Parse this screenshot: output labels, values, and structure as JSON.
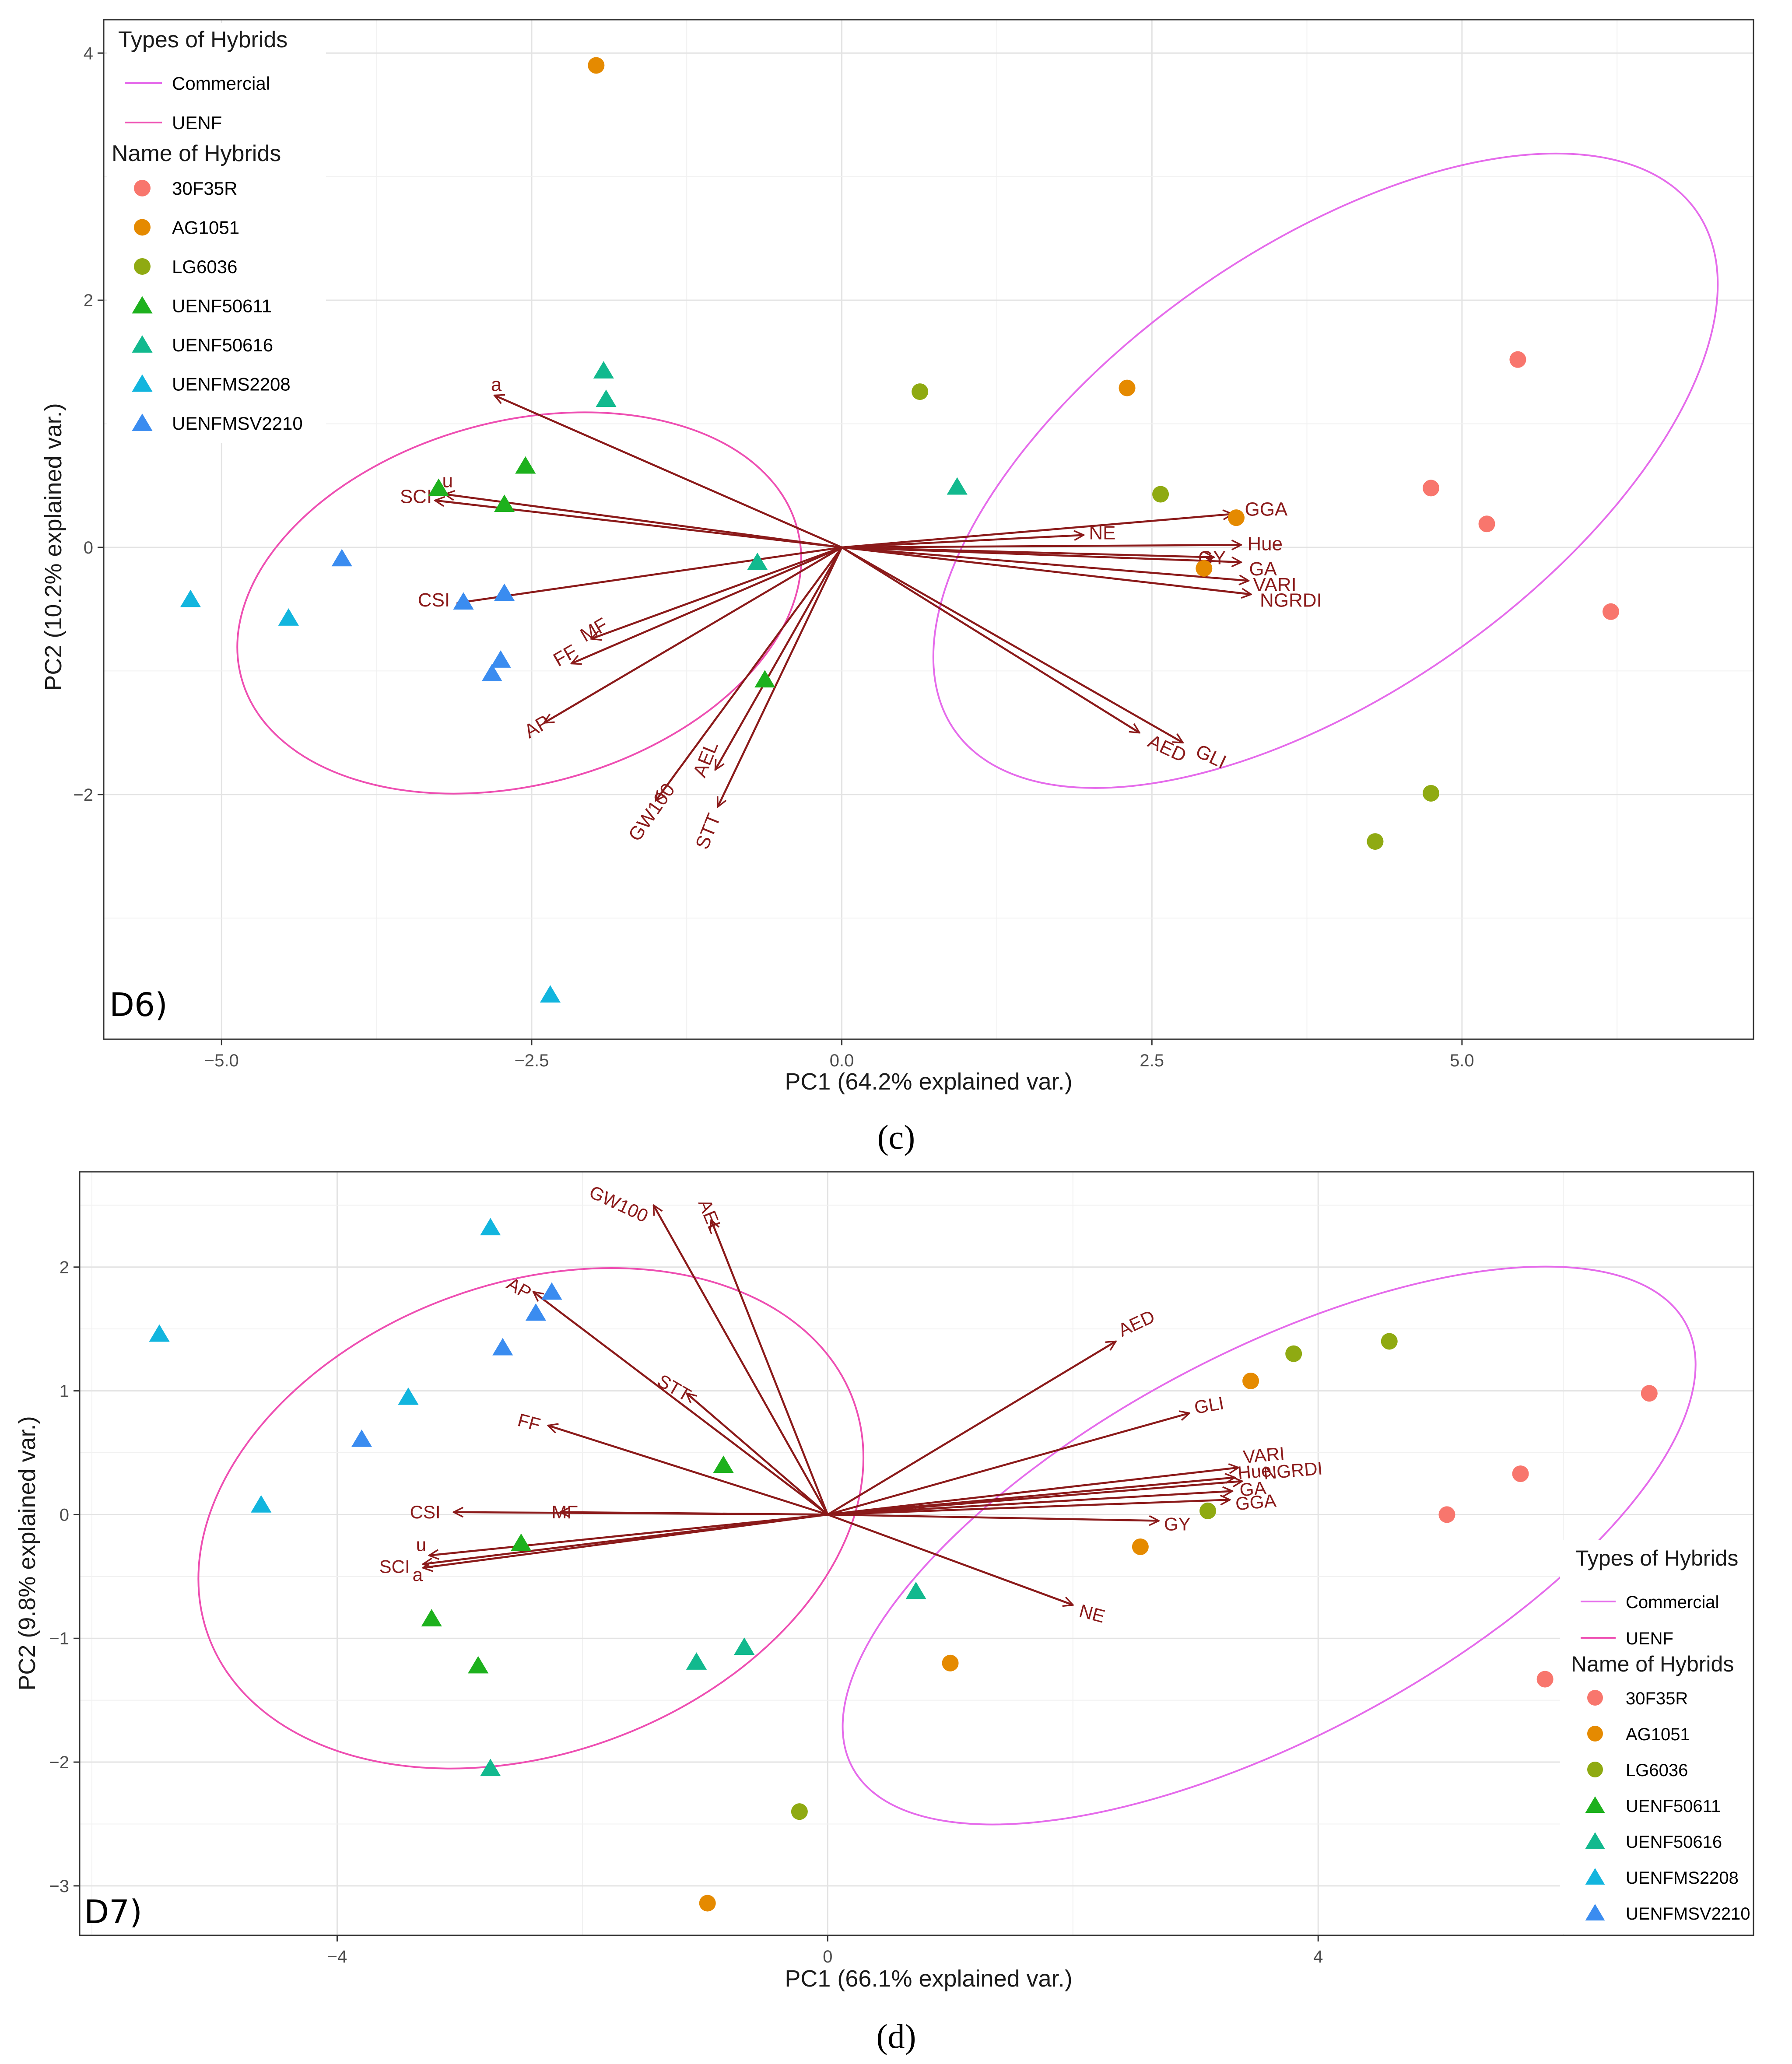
{
  "palette": {
    "30F35R": "#F8766D",
    "AG1051": "#E58A00",
    "LG6036": "#8FAA12",
    "UENF50611": "#1DB11D",
    "UENF50616": "#12B98E",
    "UENFMS2208": "#12B5DE",
    "UENFMSV2210": "#3A8CF0",
    "Commercial": "#E56BEB",
    "UENF": "#EE4FB2",
    "arrow": "#8B1A1A"
  },
  "chart_data": [
    {
      "id": "c",
      "type": "scatter",
      "subtype": "pca-biplot",
      "caption": "(c)",
      "tag": "D6)",
      "xlabel": "PC1 (64.2% explained var.)",
      "ylabel": "PC2 (10.2% explained var.)",
      "xlim": [
        -5.95,
        7.35
      ],
      "ylim": [
        -3.98,
        4.27
      ],
      "xticks": [
        -5.0,
        -2.5,
        0.0,
        2.5,
        5.0
      ],
      "xtick_labels": [
        "−5.0",
        "−2.5",
        "0.0",
        "2.5",
        "5.0"
      ],
      "yticks": [
        -2,
        0,
        2,
        4
      ],
      "ytick_labels": [
        "−2",
        "0",
        "2",
        "4"
      ],
      "grid": true,
      "legend": {
        "placement": "top-left",
        "types_title": "Types of Hybrids",
        "types": [
          "Commercial",
          "UENF"
        ],
        "names_title": "Name of Hybrids",
        "names": [
          "30F35R",
          "AG1051",
          "LG6036",
          "UENF50611",
          "UENF50616",
          "UENFMS2208",
          "UENFMSV2210"
        ]
      },
      "points": [
        {
          "hybrid": "30F35R",
          "x": 5.45,
          "y": 1.52
        },
        {
          "hybrid": "30F35R",
          "x": 4.75,
          "y": 0.48
        },
        {
          "hybrid": "30F35R",
          "x": 5.2,
          "y": 0.19
        },
        {
          "hybrid": "30F35R",
          "x": 6.2,
          "y": -0.52
        },
        {
          "hybrid": "AG1051",
          "x": -1.98,
          "y": 3.9
        },
        {
          "hybrid": "AG1051",
          "x": 2.3,
          "y": 1.29
        },
        {
          "hybrid": "AG1051",
          "x": 3.18,
          "y": 0.24
        },
        {
          "hybrid": "AG1051",
          "x": 2.92,
          "y": -0.17
        },
        {
          "hybrid": "LG6036",
          "x": 0.63,
          "y": 1.26
        },
        {
          "hybrid": "LG6036",
          "x": 2.57,
          "y": 0.43
        },
        {
          "hybrid": "LG6036",
          "x": 4.75,
          "y": -1.99
        },
        {
          "hybrid": "LG6036",
          "x": 4.3,
          "y": -2.38
        },
        {
          "hybrid": "UENF50611",
          "x": -2.55,
          "y": 0.66
        },
        {
          "hybrid": "UENF50611",
          "x": -3.25,
          "y": 0.48
        },
        {
          "hybrid": "UENF50611",
          "x": -2.72,
          "y": 0.35
        },
        {
          "hybrid": "UENF50611",
          "x": -0.62,
          "y": -1.07
        },
        {
          "hybrid": "UENF50616",
          "x": -1.92,
          "y": 1.43
        },
        {
          "hybrid": "UENF50616",
          "x": -1.9,
          "y": 1.2
        },
        {
          "hybrid": "UENF50616",
          "x": 0.93,
          "y": 0.49
        },
        {
          "hybrid": "UENF50616",
          "x": -0.68,
          "y": -0.12
        },
        {
          "hybrid": "UENFMS2208",
          "x": -5.25,
          "y": -0.42
        },
        {
          "hybrid": "UENFMS2208",
          "x": -4.46,
          "y": -0.57
        },
        {
          "hybrid": "UENFMS2208",
          "x": -2.35,
          "y": -3.62
        },
        {
          "hybrid": "UENFMSV2210",
          "x": -4.03,
          "y": -0.09
        },
        {
          "hybrid": "UENFMSV2210",
          "x": -3.05,
          "y": -0.44
        },
        {
          "hybrid": "UENFMSV2210",
          "x": -2.72,
          "y": -0.37
        },
        {
          "hybrid": "UENFMSV2210",
          "x": -2.75,
          "y": -0.91
        },
        {
          "hybrid": "UENFMSV2210",
          "x": -2.82,
          "y": -1.02
        }
      ],
      "vectors": [
        {
          "name": "a",
          "x": -2.8,
          "y": 1.23
        },
        {
          "name": "u",
          "x": -3.2,
          "y": 0.43
        },
        {
          "name": "SCI",
          "x": -3.28,
          "y": 0.38
        },
        {
          "name": "CSI",
          "x": -3.1,
          "y": -0.45
        },
        {
          "name": "MF",
          "x": -2.02,
          "y": -0.74
        },
        {
          "name": "FF",
          "x": -2.18,
          "y": -0.94
        },
        {
          "name": "AP",
          "x": -2.4,
          "y": -1.42
        },
        {
          "name": "GW100",
          "x": -1.5,
          "y": -2.05
        },
        {
          "name": "AEL",
          "x": -1.02,
          "y": -1.8
        },
        {
          "name": "STT",
          "x": -1.0,
          "y": -2.1
        },
        {
          "name": "NE",
          "x": 1.95,
          "y": 0.1
        },
        {
          "name": "GGA",
          "x": 3.15,
          "y": 0.27
        },
        {
          "name": "Hue",
          "x": 3.22,
          "y": 0.02
        },
        {
          "name": "GY",
          "x": 3.0,
          "y": -0.08
        },
        {
          "name": "GA",
          "x": 3.22,
          "y": -0.12
        },
        {
          "name": "VARI",
          "x": 3.28,
          "y": -0.27
        },
        {
          "name": "NGRDI",
          "x": 3.3,
          "y": -0.38
        },
        {
          "name": "AED",
          "x": 2.4,
          "y": -1.5
        },
        {
          "name": "GLI",
          "x": 2.75,
          "y": -1.58
        }
      ],
      "ellipses": [
        {
          "group": "UENF",
          "cx": -2.6,
          "cy": -0.45,
          "rx": 2.32,
          "ry": 1.47,
          "rot": -15
        },
        {
          "group": "Commercial",
          "cx": 3.9,
          "cy": 0.62,
          "rx": 3.65,
          "ry": 1.8,
          "rot": -35
        }
      ]
    },
    {
      "id": "d",
      "type": "scatter",
      "subtype": "pca-biplot",
      "caption": "(d)",
      "tag": "D7)",
      "xlabel": "PC1 (66.1% explained var.)",
      "ylabel": "PC2 (9.8% explained var.)",
      "xlim": [
        -6.1,
        7.55
      ],
      "ylim": [
        -3.4,
        2.77
      ],
      "xticks": [
        -4,
        0,
        4
      ],
      "xtick_labels": [
        "−4",
        "0",
        "4"
      ],
      "yticks": [
        -3,
        -2,
        -1,
        0,
        1,
        2
      ],
      "ytick_labels": [
        "−3",
        "−2",
        "−1",
        "0",
        "1",
        "2"
      ],
      "grid": true,
      "legend": {
        "placement": "right",
        "types_title": "Types of Hybrids",
        "types": [
          "Commercial",
          "UENF"
        ],
        "names_title": "Name of Hybrids",
        "names": [
          "30F35R",
          "AG1051",
          "LG6036",
          "UENF50611",
          "UENF50616",
          "UENFMS2208",
          "UENFMSV2210"
        ]
      },
      "points": [
        {
          "hybrid": "30F35R",
          "x": 6.7,
          "y": 0.98
        },
        {
          "hybrid": "30F35R",
          "x": 5.65,
          "y": 0.33
        },
        {
          "hybrid": "30F35R",
          "x": 5.05,
          "y": 0.0
        },
        {
          "hybrid": "30F35R",
          "x": 5.85,
          "y": -1.33
        },
        {
          "hybrid": "AG1051",
          "x": 3.45,
          "y": 1.08
        },
        {
          "hybrid": "AG1051",
          "x": 2.55,
          "y": -0.26
        },
        {
          "hybrid": "AG1051",
          "x": 1.0,
          "y": -1.2
        },
        {
          "hybrid": "AG1051",
          "x": -0.98,
          "y": -3.14
        },
        {
          "hybrid": "LG6036",
          "x": 4.58,
          "y": 1.4
        },
        {
          "hybrid": "LG6036",
          "x": 3.8,
          "y": 1.3
        },
        {
          "hybrid": "LG6036",
          "x": 3.1,
          "y": 0.03
        },
        {
          "hybrid": "LG6036",
          "x": -0.23,
          "y": -2.4
        },
        {
          "hybrid": "UENF50611",
          "x": -0.85,
          "y": 0.4
        },
        {
          "hybrid": "UENF50611",
          "x": -2.5,
          "y": -0.23
        },
        {
          "hybrid": "UENF50611",
          "x": -3.23,
          "y": -0.84
        },
        {
          "hybrid": "UENF50611",
          "x": -2.85,
          "y": -1.22
        },
        {
          "hybrid": "UENF50616",
          "x": 0.72,
          "y": -0.62
        },
        {
          "hybrid": "UENF50616",
          "x": -0.68,
          "y": -1.07
        },
        {
          "hybrid": "UENF50616",
          "x": -1.07,
          "y": -1.19
        },
        {
          "hybrid": "UENF50616",
          "x": -2.75,
          "y": -2.05
        },
        {
          "hybrid": "UENFMS2208",
          "x": -2.75,
          "y": 2.32
        },
        {
          "hybrid": "UENFMS2208",
          "x": -5.45,
          "y": 1.46
        },
        {
          "hybrid": "UENFMS2208",
          "x": -3.42,
          "y": 0.95
        },
        {
          "hybrid": "UENFMS2208",
          "x": -4.62,
          "y": 0.08
        },
        {
          "hybrid": "UENFMSV2210",
          "x": -2.25,
          "y": 1.8
        },
        {
          "hybrid": "UENFMSV2210",
          "x": -2.38,
          "y": 1.63
        },
        {
          "hybrid": "UENFMSV2210",
          "x": -2.65,
          "y": 1.35
        },
        {
          "hybrid": "UENFMSV2210",
          "x": -3.8,
          "y": 0.61
        }
      ],
      "vectors": [
        {
          "name": "GW100",
          "x": -1.42,
          "y": 2.5
        },
        {
          "name": "AEL",
          "x": -0.95,
          "y": 2.38
        },
        {
          "name": "AP",
          "x": -2.4,
          "y": 1.8
        },
        {
          "name": "STT",
          "x": -1.15,
          "y": 0.98
        },
        {
          "name": "FF",
          "x": -2.28,
          "y": 0.72
        },
        {
          "name": "CSI",
          "x": -3.05,
          "y": 0.02
        },
        {
          "name": "MF",
          "x": -2.18,
          "y": 0.02
        },
        {
          "name": "u",
          "x": -3.25,
          "y": -0.33
        },
        {
          "name": "SCI",
          "x": -3.3,
          "y": -0.4
        },
        {
          "name": "a",
          "x": -3.3,
          "y": -0.43
        },
        {
          "name": "AED",
          "x": 2.35,
          "y": 1.4
        },
        {
          "name": "GLI",
          "x": 2.95,
          "y": 0.82
        },
        {
          "name": "VARI",
          "x": 3.35,
          "y": 0.38
        },
        {
          "name": "Hue",
          "x": 3.32,
          "y": 0.3
        },
        {
          "name": "NGRDI",
          "x": 3.38,
          "y": 0.27
        },
        {
          "name": "GA",
          "x": 3.3,
          "y": 0.19
        },
        {
          "name": "GGA",
          "x": 3.28,
          "y": 0.12
        },
        {
          "name": "GY",
          "x": 2.7,
          "y": -0.05
        },
        {
          "name": "NE",
          "x": 2.0,
          "y": -0.73
        }
      ],
      "ellipses": [
        {
          "group": "UENF",
          "cx": -2.42,
          "cy": -0.03,
          "rx": 2.8,
          "ry": 1.9,
          "rot": -20
        },
        {
          "group": "Commercial",
          "cx": 3.6,
          "cy": -0.25,
          "rx": 3.85,
          "ry": 1.55,
          "rot": -28
        }
      ]
    }
  ]
}
